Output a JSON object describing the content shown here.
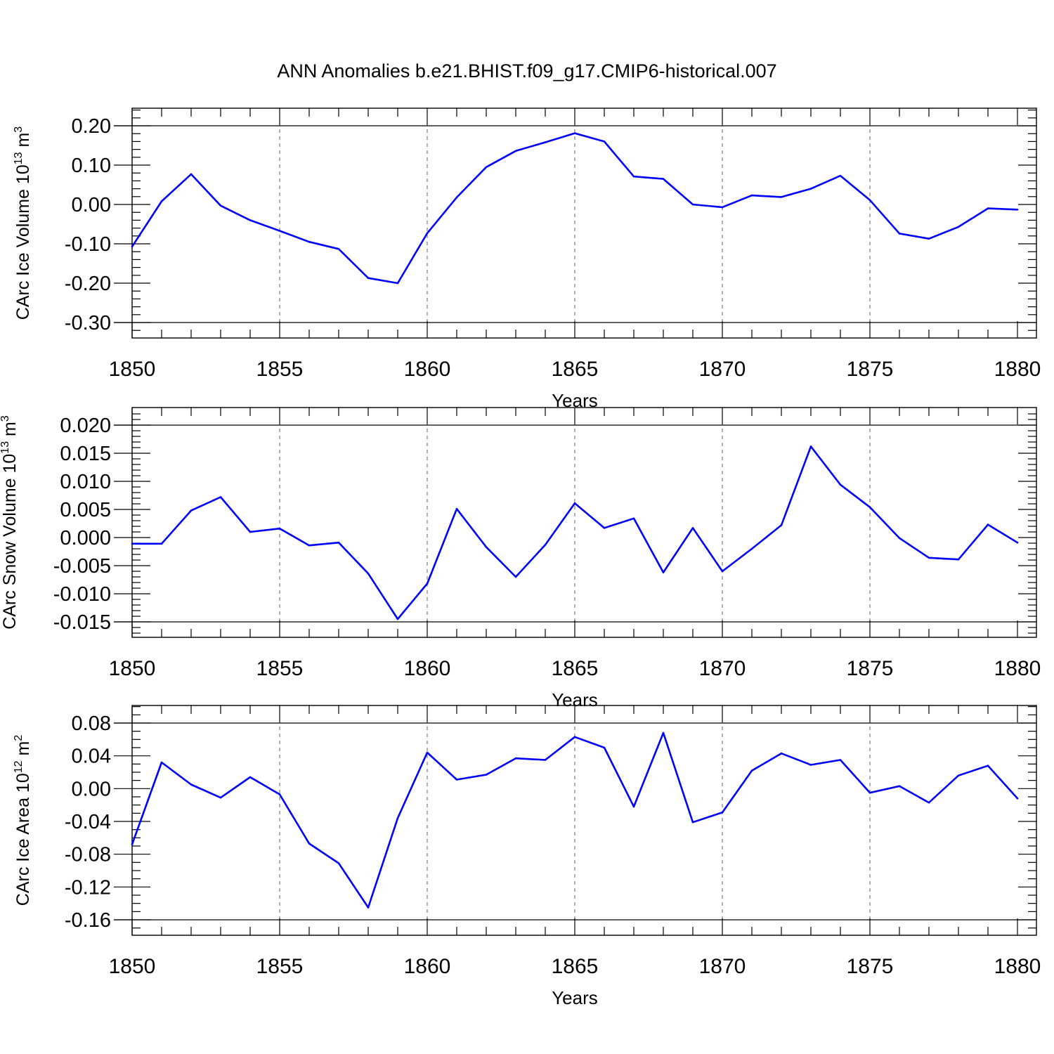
{
  "title": "ANN Anomalies b.e21.BHIST.f09_g17.CMIP6-historical.007",
  "chart_data": [
    {
      "type": "line",
      "ylabel": "CArc Ice Volume 10",
      "ylabel_exp": "13",
      "ylabel_unit": " m",
      "ylabel_unit_exp": "3",
      "xlabel": "Years",
      "xlim": [
        1850,
        1880
      ],
      "ylim": [
        -0.3,
        0.2
      ],
      "xticks": [
        1850,
        1855,
        1860,
        1865,
        1870,
        1875,
        1880
      ],
      "xtick_labels": [
        "1850",
        "1855",
        "1860",
        "1865",
        "1870",
        "1875",
        "1880"
      ],
      "yticks": [
        -0.3,
        -0.2,
        -0.1,
        0.0,
        0.1,
        0.2
      ],
      "ytick_labels": [
        "-0.30",
        "-0.20",
        "-0.10",
        "0.00",
        "0.10",
        "0.20"
      ],
      "y_minor_step": 0.02,
      "grid": "dashed vertical lines at major x ticks",
      "color": "#0000ff",
      "x": [
        1850,
        1851,
        1852,
        1853,
        1854,
        1855,
        1856,
        1857,
        1858,
        1859,
        1860,
        1861,
        1862,
        1863,
        1864,
        1865,
        1866,
        1867,
        1868,
        1869,
        1870,
        1871,
        1872,
        1873,
        1874,
        1875,
        1876,
        1877,
        1878,
        1879,
        1880
      ],
      "values": [
        -0.107,
        0.008,
        0.077,
        -0.003,
        -0.04,
        -0.067,
        -0.095,
        -0.113,
        -0.187,
        -0.2,
        -0.073,
        0.018,
        0.095,
        0.136,
        0.158,
        0.181,
        0.16,
        0.071,
        0.065,
        0.0,
        -0.007,
        0.023,
        0.019,
        0.04,
        0.073,
        0.011,
        -0.074,
        -0.087,
        -0.057,
        -0.01,
        -0.013
      ]
    },
    {
      "type": "line",
      "ylabel": "CArc Snow Volume 10",
      "ylabel_exp": "13",
      "ylabel_unit": " m",
      "ylabel_unit_exp": "3",
      "xlabel": "Years",
      "xlim": [
        1850,
        1880
      ],
      "ylim": [
        -0.015,
        0.02
      ],
      "xticks": [
        1850,
        1855,
        1860,
        1865,
        1870,
        1875,
        1880
      ],
      "xtick_labels": [
        "1850",
        "1855",
        "1860",
        "1865",
        "1870",
        "1875",
        "1880"
      ],
      "yticks": [
        -0.015,
        -0.01,
        -0.005,
        0.0,
        0.005,
        0.01,
        0.015,
        0.02
      ],
      "ytick_labels": [
        "-0.015",
        "-0.010",
        "-0.005",
        "0.000",
        "0.005",
        "0.010",
        "0.015",
        "0.020"
      ],
      "y_minor_step": 0.001,
      "grid": "dashed vertical lines at major x ticks",
      "color": "#0000ff",
      "x": [
        1850,
        1851,
        1852,
        1853,
        1854,
        1855,
        1856,
        1857,
        1858,
        1859,
        1860,
        1861,
        1862,
        1863,
        1864,
        1865,
        1866,
        1867,
        1868,
        1869,
        1870,
        1871,
        1872,
        1873,
        1874,
        1875,
        1876,
        1877,
        1878,
        1879,
        1880
      ],
      "values": [
        -0.0011,
        -0.0011,
        0.0048,
        0.0072,
        0.001,
        0.0016,
        -0.0014,
        -0.0009,
        -0.0064,
        -0.0145,
        -0.0082,
        0.0051,
        -0.0017,
        -0.007,
        -0.0013,
        0.0061,
        0.0017,
        0.0034,
        -0.0062,
        0.0017,
        -0.006,
        -0.002,
        0.0022,
        0.0162,
        0.0094,
        0.0054,
        -0.0001,
        -0.0036,
        -0.0039,
        0.0023,
        -0.0009
      ]
    },
    {
      "type": "line",
      "ylabel": "CArc Ice Area 10",
      "ylabel_exp": "12",
      "ylabel_unit": " m",
      "ylabel_unit_exp": "2",
      "xlabel": "Years",
      "xlim": [
        1850,
        1880
      ],
      "ylim": [
        -0.16,
        0.08
      ],
      "xticks": [
        1850,
        1855,
        1860,
        1865,
        1870,
        1875,
        1880
      ],
      "xtick_labels": [
        "1850",
        "1855",
        "1860",
        "1865",
        "1870",
        "1875",
        "1880"
      ],
      "yticks": [
        -0.16,
        -0.12,
        -0.08,
        -0.04,
        0.0,
        0.04,
        0.08
      ],
      "ytick_labels": [
        "-0.16",
        "-0.12",
        "-0.08",
        "-0.04",
        "0.00",
        "0.04",
        "0.08"
      ],
      "y_minor_step": 0.01,
      "grid": "dashed vertical lines at major x ticks",
      "color": "#0000ff",
      "x": [
        1850,
        1851,
        1852,
        1853,
        1854,
        1855,
        1856,
        1857,
        1858,
        1859,
        1860,
        1861,
        1862,
        1863,
        1864,
        1865,
        1866,
        1867,
        1868,
        1869,
        1870,
        1871,
        1872,
        1873,
        1874,
        1875,
        1876,
        1877,
        1878,
        1879,
        1880
      ],
      "values": [
        -0.068,
        0.032,
        0.005,
        -0.011,
        0.014,
        -0.007,
        -0.067,
        -0.091,
        -0.145,
        -0.036,
        0.044,
        0.011,
        0.017,
        0.037,
        0.035,
        0.063,
        0.05,
        -0.022,
        0.068,
        -0.041,
        -0.029,
        0.022,
        0.043,
        0.029,
        0.035,
        -0.005,
        0.003,
        -0.017,
        0.016,
        0.028,
        -0.012
      ]
    }
  ]
}
